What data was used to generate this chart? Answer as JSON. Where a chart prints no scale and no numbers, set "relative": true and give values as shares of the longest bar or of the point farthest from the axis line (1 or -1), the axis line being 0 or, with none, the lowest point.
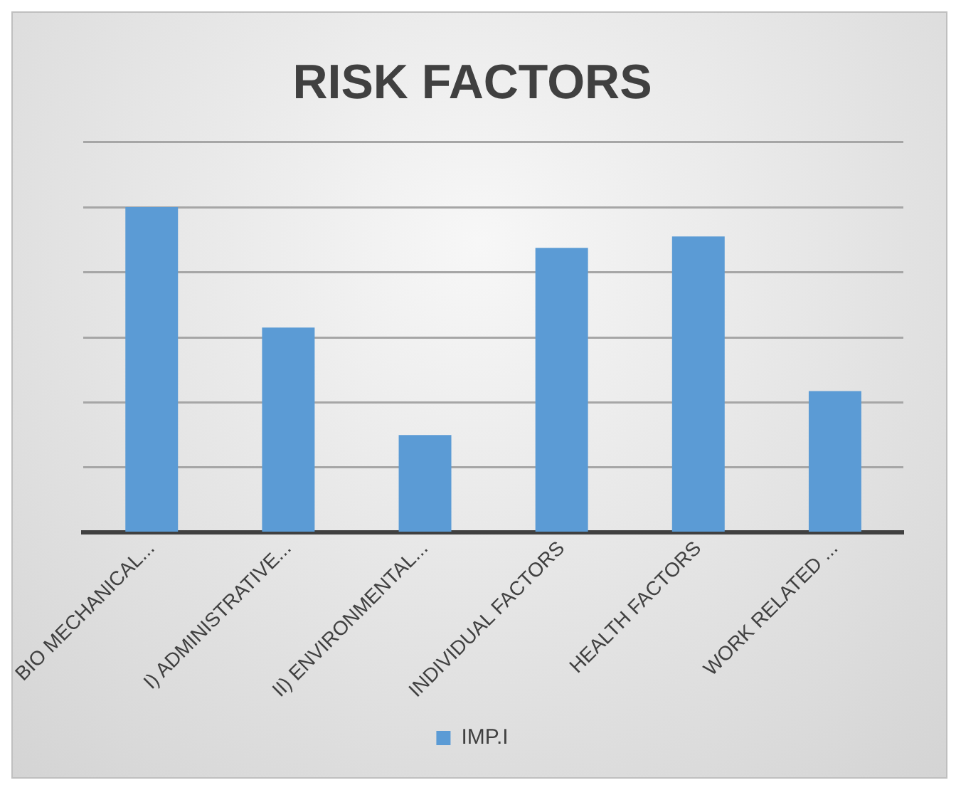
{
  "chart_data": {
    "type": "bar",
    "title": "RISK FACTORS",
    "categories": [
      "BIO MECHANICAL...",
      "I) ADMINISTRATIVE...",
      "II) ENVIRONMENTAL...",
      "INDIVIDUAL FACTORS",
      "HEALTH FACTORS",
      "WORK RELATED ..."
    ],
    "series": [
      {
        "name": "IMP.I",
        "color": "#5b9bd5",
        "values": [
          1,
          0.63,
          0.3,
          0.875,
          0.91,
          0.435
        ]
      }
    ],
    "relative": true,
    "grid": "y",
    "legend": "bottom"
  }
}
